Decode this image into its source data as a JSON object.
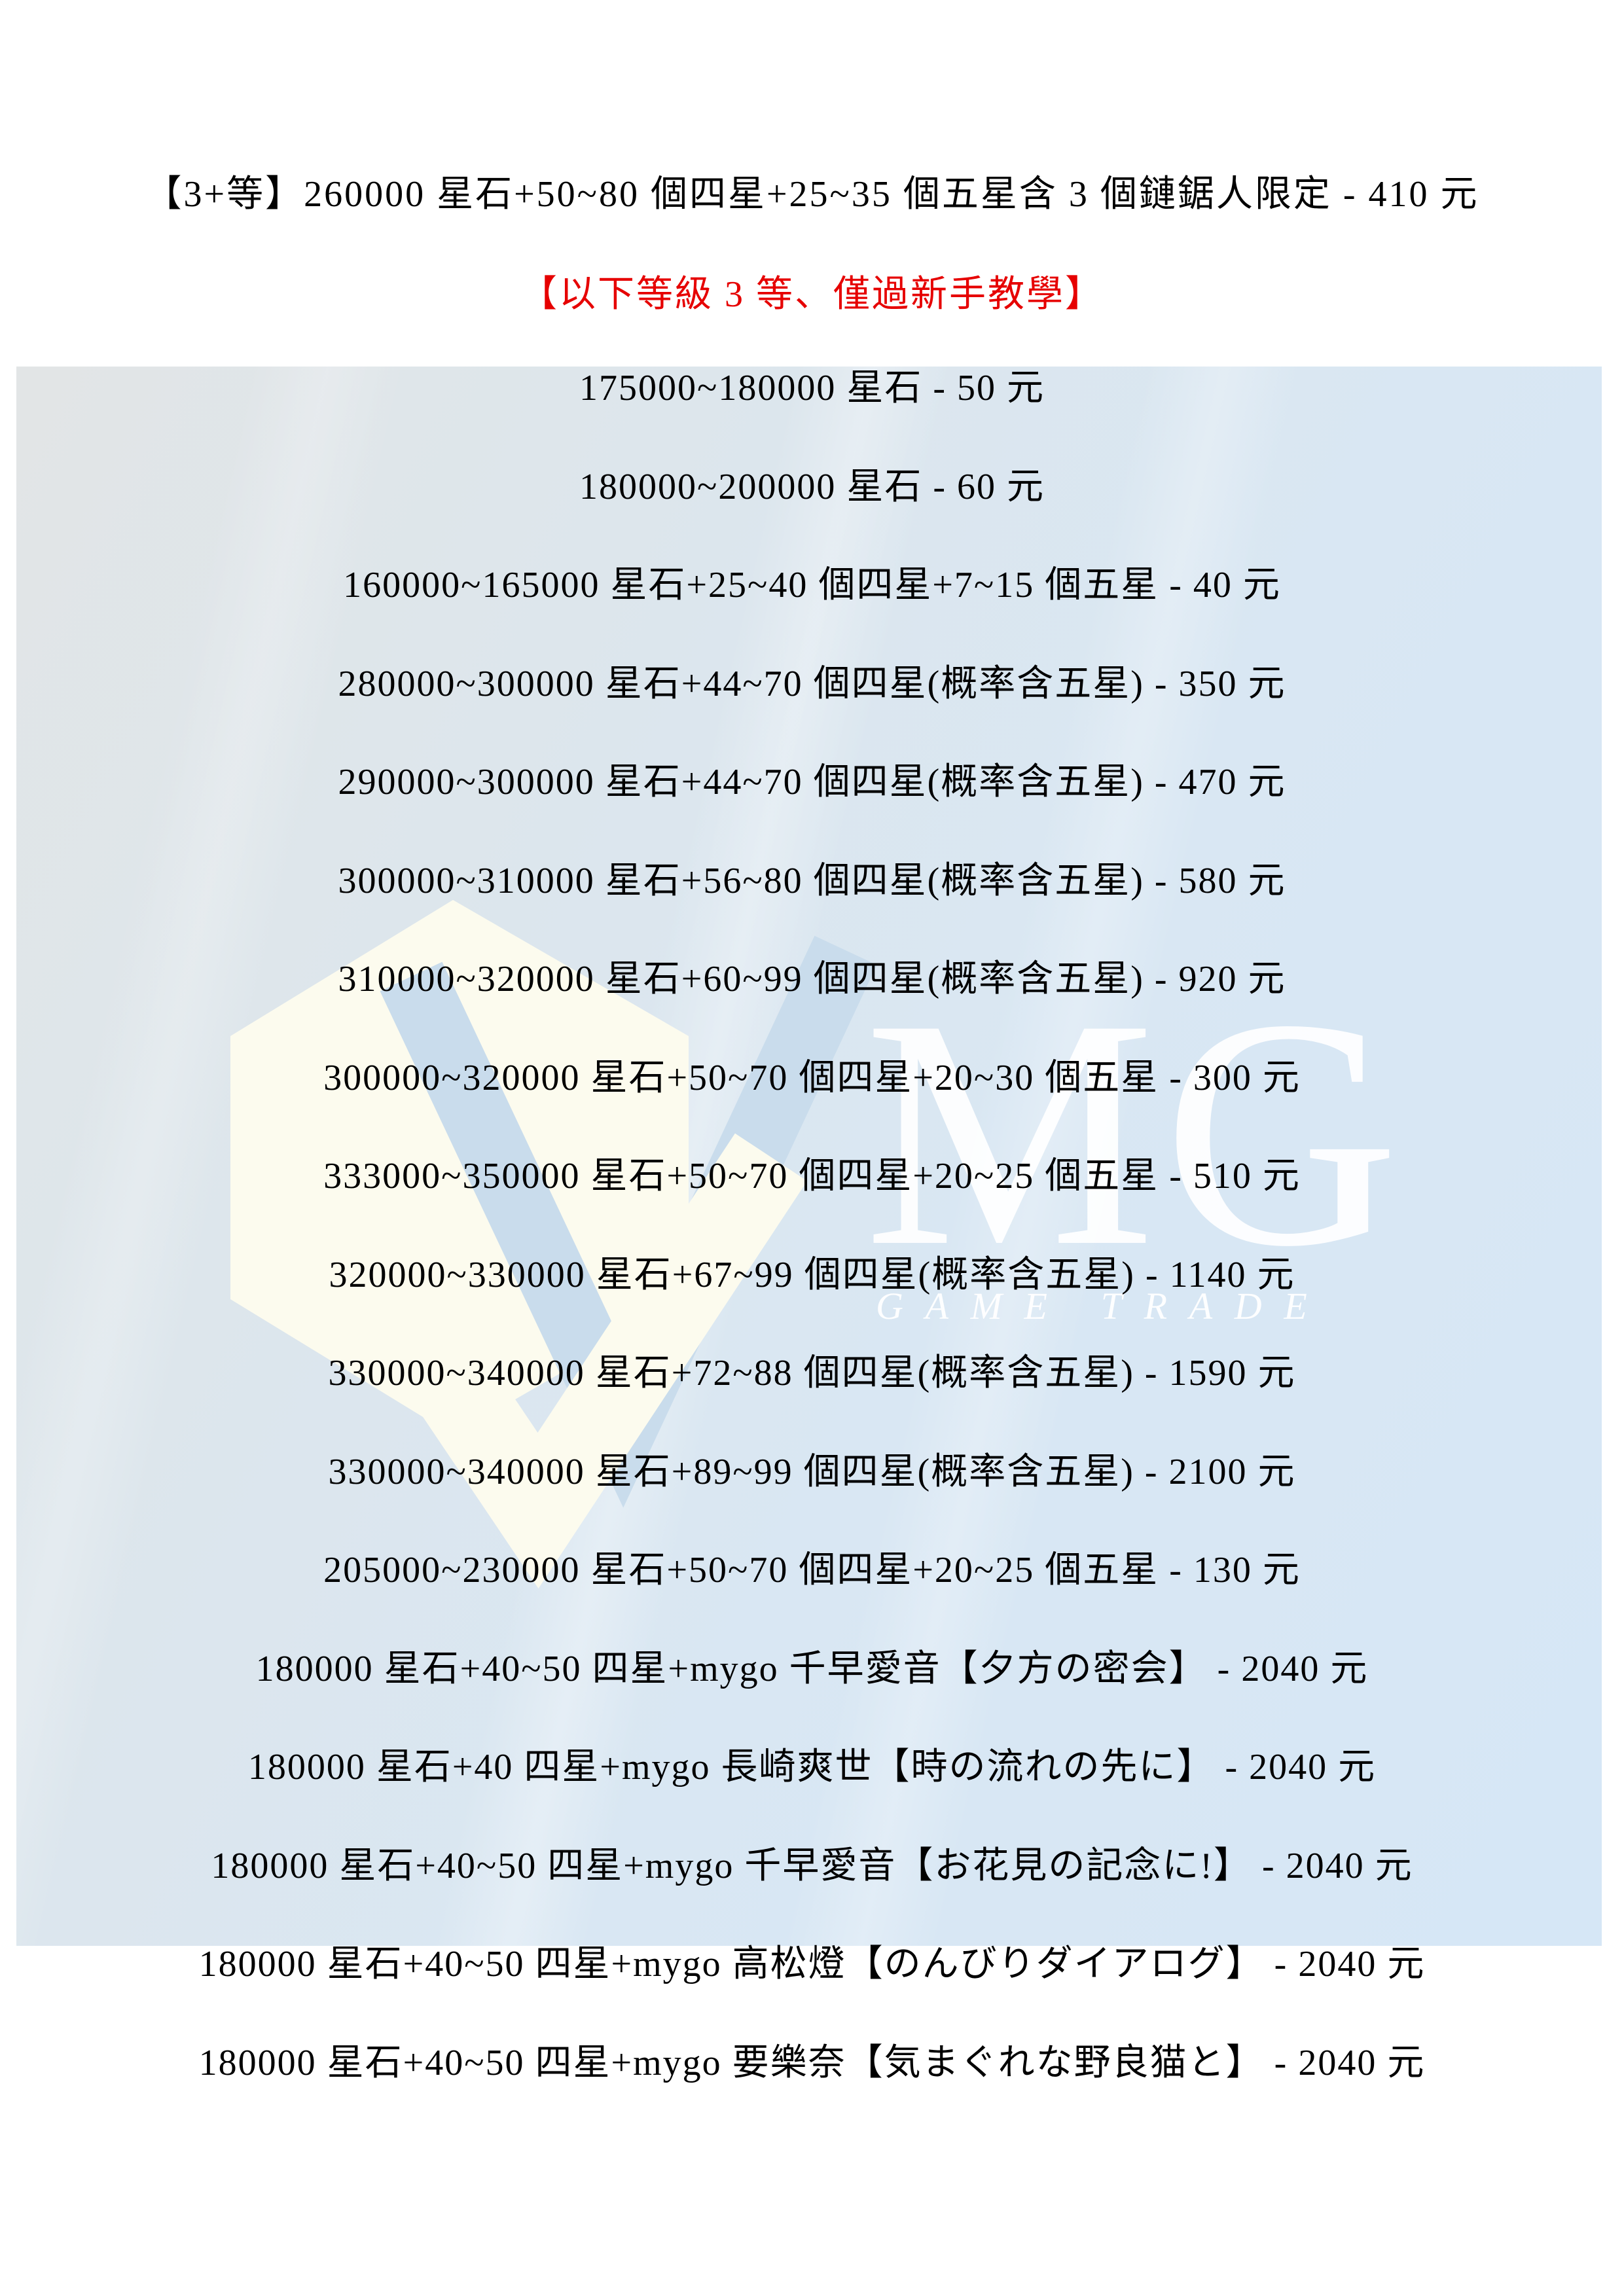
{
  "page": {
    "header_line": "【3+等】260000 星石+50~80 個四星+25~35 個五星含 3 個鏈鋸人限定 - 410 元",
    "notice_line": "【以下等級 3 等、僅過新手教學】",
    "rows": [
      "175000~180000 星石 - 50 元",
      "180000~200000 星石 - 60 元",
      "160000~165000 星石+25~40 個四星+7~15 個五星 - 40 元",
      "280000~300000 星石+44~70 個四星(概率含五星) - 350 元",
      "290000~300000 星石+44~70 個四星(概率含五星) - 470 元",
      "300000~310000 星石+56~80 個四星(概率含五星) - 580 元",
      "310000~320000 星石+60~99 個四星(概率含五星) - 920 元",
      "300000~320000 星石+50~70 個四星+20~30 個五星 - 300 元",
      "333000~350000 星石+50~70 個四星+20~25 個五星 - 510 元",
      "320000~330000 星石+67~99 個四星(概率含五星) - 1140 元",
      "330000~340000 星石+72~88 個四星(概率含五星) - 1590 元",
      "330000~340000 星石+89~99 個四星(概率含五星) - 2100 元",
      "205000~230000 星石+50~70 個四星+20~25 個五星 - 130 元",
      "180000 星石+40~50 四星+mygo 千早愛音【夕方の密会】 - 2040 元",
      "180000 星石+40 四星+mygo 長崎爽世【時の流れの先に】 - 2040 元",
      "180000 星石+40~50 四星+mygo 千早愛音【お花見の記念に!】 - 2040 元",
      "180000 星石+40~50 四星+mygo 高松燈【のんびりダイアログ】 - 2040 元",
      "180000 星石+40~50 四星+mygo 要樂奈【気まぐれな野良猫と】 - 2040 元"
    ]
  },
  "watermark": {
    "monogram": "MG",
    "subtitle": "GAME TRADE"
  },
  "colors": {
    "notice_red": "#e60000",
    "panel_top": "#e2e5e6",
    "panel_bottom": "#d6e7f6",
    "watermark_cream": "#fcfbee",
    "watermark_blue": "#c9dcec"
  }
}
